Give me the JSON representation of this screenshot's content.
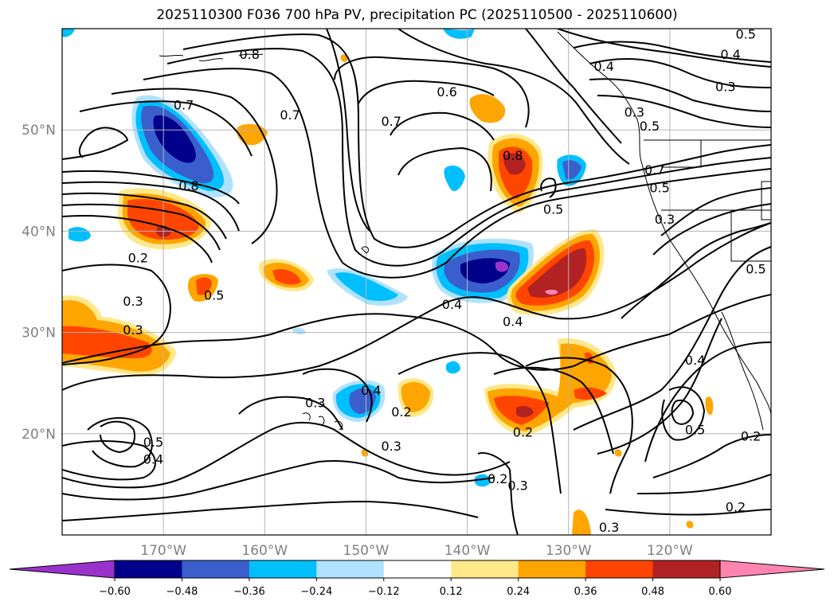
{
  "title": "2025110300 F036 700 hPa PV, precipitation PC (2025110500 - 2025110600)",
  "map": {
    "lon_range": [
      -180,
      -110
    ],
    "lat_range": [
      10,
      60
    ],
    "lat_labels": [
      "50°N",
      "40°N",
      "30°N",
      "20°N"
    ],
    "lat_values": [
      50,
      40,
      30,
      20
    ],
    "lon_labels": [
      "170°W",
      "160°W",
      "150°W",
      "140°W",
      "130°W",
      "120°W"
    ],
    "lon_values": [
      -170,
      -160,
      -150,
      -140,
      -130,
      -120
    ],
    "grid": true
  },
  "colorbar": {
    "ticks": [
      "−0.60",
      "−0.48",
      "−0.36",
      "−0.24",
      "−0.12",
      "0.12",
      "0.24",
      "0.36",
      "0.48",
      "0.60"
    ],
    "colors": [
      "#9932cc",
      "#00008b",
      "#3a5fcd",
      "#00bfff",
      "#b0e2ff",
      "#ffffff",
      "#ffe88a",
      "#ffa500",
      "#ff4500",
      "#b22222",
      "#ff85b0"
    ],
    "extend": "both"
  },
  "contour_labels": [
    {
      "text": "0.8",
      "lon": -161.5,
      "lat": 57.5
    },
    {
      "text": "0.7",
      "lon": -157.5,
      "lat": 51.5
    },
    {
      "text": "0.7",
      "lon": -168,
      "lat": 52.5
    },
    {
      "text": "0.6",
      "lon": -142,
      "lat": 53.8
    },
    {
      "text": "0.7",
      "lon": -147.5,
      "lat": 50.9
    },
    {
      "text": "0.8",
      "lon": -167.5,
      "lat": 44.5
    },
    {
      "text": "0.8",
      "lon": -135.5,
      "lat": 47.5
    },
    {
      "text": "0.5",
      "lon": -131.5,
      "lat": 42.2
    },
    {
      "text": "0.4",
      "lon": -126.5,
      "lat": 56.3
    },
    {
      "text": "0.4",
      "lon": -114,
      "lat": 57.5
    },
    {
      "text": "0.3",
      "lon": -114.5,
      "lat": 54.3
    },
    {
      "text": "0.5",
      "lon": -112.5,
      "lat": 59.5
    },
    {
      "text": "0.3",
      "lon": -123.5,
      "lat": 51.8
    },
    {
      "text": "0.5",
      "lon": -122,
      "lat": 50.4
    },
    {
      "text": "0.7",
      "lon": -121.5,
      "lat": 46.1
    },
    {
      "text": "0.5",
      "lon": -121,
      "lat": 44.3
    },
    {
      "text": "0.3",
      "lon": -120.5,
      "lat": 41.2
    },
    {
      "text": "0.5",
      "lon": -111.5,
      "lat": 36.3
    },
    {
      "text": "0.2",
      "lon": -172.5,
      "lat": 37.4
    },
    {
      "text": "0.5",
      "lon": -165,
      "lat": 33.7
    },
    {
      "text": "0.3",
      "lon": -173,
      "lat": 33.1
    },
    {
      "text": "0.3",
      "lon": -173,
      "lat": 30.3
    },
    {
      "text": "0.4",
      "lon": -141.5,
      "lat": 32.8
    },
    {
      "text": "0.4",
      "lon": -135.5,
      "lat": 31.1
    },
    {
      "text": "0.4",
      "lon": -149.5,
      "lat": 24.3
    },
    {
      "text": "0.3",
      "lon": -155,
      "lat": 23.1
    },
    {
      "text": "0.2",
      "lon": -146.5,
      "lat": 22.2
    },
    {
      "text": "0.3",
      "lon": -147.5,
      "lat": 18.8
    },
    {
      "text": "0.5",
      "lon": -171,
      "lat": 19.2
    },
    {
      "text": "0.4",
      "lon": -171,
      "lat": 17.5
    },
    {
      "text": "0.2",
      "lon": -137,
      "lat": 15.6
    },
    {
      "text": "0.3",
      "lon": -135,
      "lat": 14.9
    },
    {
      "text": "0.2",
      "lon": -134.5,
      "lat": 20.2
    },
    {
      "text": "0.4",
      "lon": -117.5,
      "lat": 27.3
    },
    {
      "text": "0.5",
      "lon": -117.5,
      "lat": 20.4
    },
    {
      "text": "0.2",
      "lon": -112,
      "lat": 19.8
    },
    {
      "text": "0.2",
      "lon": -113.5,
      "lat": 12.8
    },
    {
      "text": "0.3",
      "lon": -126,
      "lat": 10.8
    }
  ]
}
